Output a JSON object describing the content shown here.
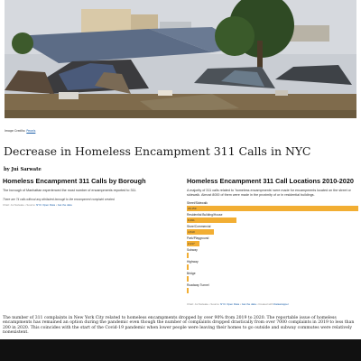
{
  "photo": {
    "alt": "Homeless encampment tents and tarps beside a field with solar panels and buildings"
  },
  "credit": {
    "label": "Image Credits:",
    "link": "Pexels"
  },
  "article": {
    "headline": "Decrease in Homeless Encampment 311 Calls in NYC",
    "byline": "by Jui Sarwate",
    "body": "The number of 311 complaints in New York City related to homeless encampments dropped by over 90% from 2019 to 2020. The reportable issue of homeless encampments has remained an option during the pandemic even though the number of complaints dropped drastically from over 7000 complaints in 2019 to less than 200 in 2020. This coincides with the start of the Covid-19 pandemic when lower people were leaving their homes to go outside and subway commutes were relatively nonexistent."
  },
  "left_panel": {
    "title": "Homeless Encampment 311 Calls by Borough",
    "subtitle": "The borough of Manhattan experienced the most number of encampments reported to 311.",
    "note": "There are 74 calls without any attributed borough to the encampment complaint created.",
    "source_prefix": "Chart: Jui Sarwate • Source:",
    "source_link1": "NYC Open Data",
    "source_sep": "•",
    "source_link2": "Get the data"
  },
  "right_panel": {
    "title": "Homeless Encampment 311 Call Locations 2010-2020",
    "subtitle": "A majority of 311 calls related to 'homeless encampments' were made for encampments located on the street or sidewalk. Almost 8000 of them were made in the proximity of or in residential buildings.",
    "source_prefix": "Chart: Jui Sarwate • Source:",
    "source_link1": "NYC Open Data",
    "source_sep": "•",
    "source_link2": "Get the data",
    "source_suffix": "• Created with",
    "source_link3": "Datawrapper"
  },
  "colors": {
    "bar": "#f2ae33",
    "link": "#1a5ea8"
  },
  "chart_data": {
    "type": "bar",
    "orientation": "horizontal",
    "categories": [
      "Street/Sidewalk",
      "Residential Building/House",
      "Store/Commercial",
      "Park/Playground",
      "Subway",
      "Highway",
      "Bridge",
      "Roadway Tunnel"
    ],
    "values": [
      29159,
      8491,
      4610,
      2217,
      0,
      0,
      0,
      0
    ],
    "value_labels": [
      "29,159",
      "8,491",
      "4,610",
      "2,217",
      "",
      "",
      "",
      ""
    ]
  }
}
